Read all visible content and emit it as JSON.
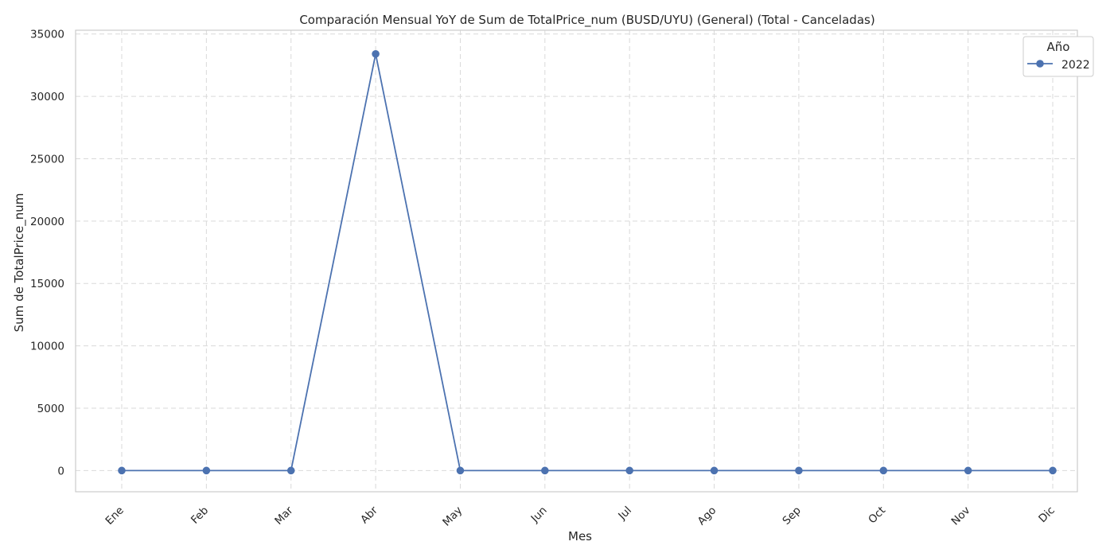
{
  "chart_data": {
    "type": "line",
    "title": "Comparación Mensual YoY de Sum de TotalPrice_num (BUSD/UYU) (General) (Total - Canceladas)",
    "xlabel": "Mes",
    "ylabel": "Sum de TotalPrice_num",
    "categories": [
      "Ene",
      "Feb",
      "Mar",
      "Abr",
      "May",
      "Jun",
      "Jul",
      "Ago",
      "Sep",
      "Oct",
      "Nov",
      "Dic"
    ],
    "y_ticks": [
      0,
      5000,
      10000,
      15000,
      20000,
      25000,
      30000,
      35000
    ],
    "ylim": [
      -1700,
      35300
    ],
    "grid": true,
    "legend": {
      "title": "Año",
      "placement": "top-right"
    },
    "series": [
      {
        "name": "2022",
        "color": "#4c72b0",
        "marker": "circle",
        "values": [
          0,
          0,
          0,
          33400,
          0,
          0,
          0,
          0,
          0,
          0,
          0,
          0
        ]
      }
    ]
  }
}
